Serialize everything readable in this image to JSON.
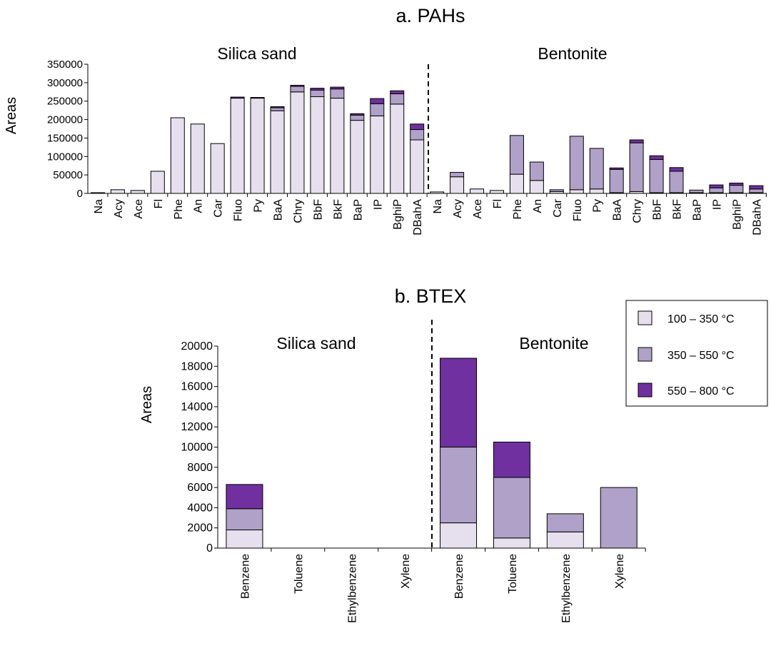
{
  "chart_data": [
    {
      "type": "bar",
      "stacked": true,
      "title": "a. PAHs",
      "ylabel": "Areas",
      "xlabel": "",
      "ylim": [
        0,
        350000
      ],
      "yticks": [
        "0",
        "50000",
        "100000",
        "150000",
        "200000",
        "250000",
        "300000",
        "350000"
      ],
      "groups": [
        "Silica sand",
        "Bentonite"
      ],
      "categories": [
        "Na",
        "Acy",
        "Ace",
        "Fl",
        "Phe",
        "An",
        "Car",
        "Fluo",
        "Py",
        "BaA",
        "Chry",
        "BbF",
        "BkF",
        "BaP",
        "IP",
        "BghiP",
        "DBahA"
      ],
      "series": [
        {
          "name": "100 – 350 °C",
          "color": "#e6e0ee",
          "values": {
            "Silica sand": [
              2000,
              10000,
              8000,
              60000,
              205000,
              188000,
              135000,
              258000,
              258000,
              224000,
              275000,
              262000,
              258000,
              198000,
              210000,
              242000,
              145000
            ],
            "Bentonite": [
              4000,
              45000,
              12000,
              8000,
              52000,
              35000,
              5000,
              10000,
              12000,
              2000,
              5000,
              2000,
              2000,
              2000,
              2000,
              2000,
              2000
            ]
          }
        },
        {
          "name": "350 – 550 °C",
          "color": "#b0a1c8",
          "values": {
            "Silica sand": [
              0,
              0,
              0,
              0,
              0,
              0,
              0,
              0,
              0,
              8000,
              15000,
              18000,
              25000,
              14000,
              33000,
              28000,
              28000
            ],
            "Bentonite": [
              0,
              12000,
              0,
              0,
              105000,
              50000,
              5000,
              145000,
              110000,
              63000,
              132000,
              90000,
              58000,
              7000,
              13000,
              20000,
              10000
            ]
          }
        },
        {
          "name": "550 – 800 °C",
          "color": "#7030a0",
          "values": {
            "Silica sand": [
              0,
              0,
              0,
              0,
              0,
              0,
              0,
              3000,
              2000,
              3000,
              3000,
              5000,
              5000,
              4000,
              14000,
              8000,
              15000
            ],
            "Bentonite": [
              0,
              0,
              0,
              0,
              0,
              0,
              0,
              0,
              0,
              4000,
              8000,
              10000,
              10000,
              0,
              8000,
              6000,
              9000
            ]
          }
        }
      ]
    },
    {
      "type": "bar",
      "stacked": true,
      "title": "b. BTEX",
      "ylabel": "Areas",
      "xlabel": "",
      "ylim": [
        0,
        20000
      ],
      "yticks": [
        "0",
        "2000",
        "4000",
        "6000",
        "8000",
        "10000",
        "12000",
        "14000",
        "16000",
        "18000",
        "20000"
      ],
      "groups": [
        "Silica sand",
        "Bentonite"
      ],
      "categories": [
        "Benzene",
        "Toluene",
        "Ethylbenzene",
        "Xylene"
      ],
      "series": [
        {
          "name": "100 – 350 °C",
          "color": "#e6e0ee",
          "values": {
            "Silica sand": [
              1800,
              0,
              0,
              0
            ],
            "Bentonite": [
              2500,
              1000,
              1600,
              0
            ]
          }
        },
        {
          "name": "350 – 550 °C",
          "color": "#b0a1c8",
          "values": {
            "Silica sand": [
              2100,
              0,
              0,
              0
            ],
            "Bentonite": [
              7500,
              6000,
              1800,
              6000
            ]
          }
        },
        {
          "name": "550 – 800 °C",
          "color": "#7030a0",
          "values": {
            "Silica sand": [
              2400,
              0,
              0,
              0
            ],
            "Bentonite": [
              8800,
              3500,
              0,
              0
            ]
          }
        }
      ]
    }
  ],
  "legend": {
    "position": "right",
    "items": [
      "100 – 350 °C",
      "350 – 550 °C",
      "550 – 800 °C"
    ]
  }
}
